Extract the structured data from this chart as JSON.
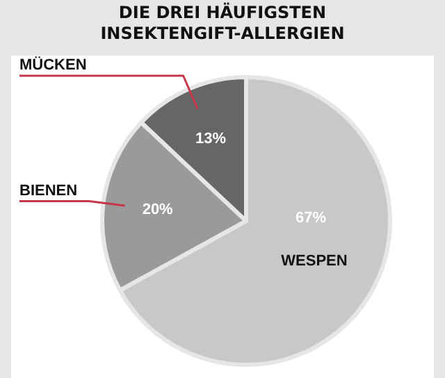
{
  "chart_data": {
    "type": "pie",
    "title": "DIE DREI HÄUFIGSTEN INSEKTENGIFT-ALLERGIEN",
    "categories": [
      "WESPEN",
      "BIENEN",
      "MÜCKEN"
    ],
    "values": [
      67,
      20,
      13
    ],
    "value_labels": [
      "67%",
      "20%",
      "13%"
    ],
    "colors": [
      "#c8c8c8",
      "#9a9a9a",
      "#666666"
    ],
    "legend": false
  }
}
